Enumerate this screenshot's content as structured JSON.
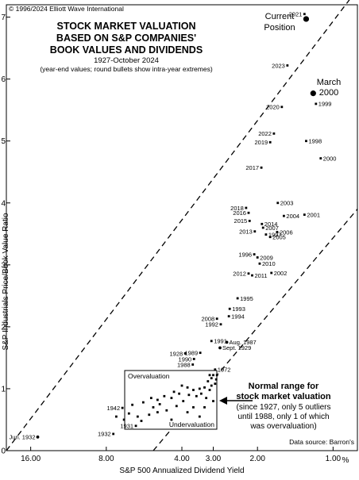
{
  "chart_data": {
    "type": "scatter",
    "title": "STOCK MARKET VALUATION BASED ON S&P COMPANIES' BOOK VALUES AND DIVIDENDS",
    "title_lines": [
      "STOCK MARKET VALUATION",
      "BASED ON S&P COMPANIES'",
      "BOOK VALUES AND DIVIDENDS"
    ],
    "subtitle": "1927-October 2024",
    "note": "(year-end values; round bullets show intra-year extremes)",
    "copyright": "© 1996/2024 Elliott Wave International",
    "source": "Data source: Barron's",
    "xlabel": "S&P 500 Annualized Dividend Yield",
    "ylabel": "S&P Industrials Price/Book Value Ratio",
    "x_scale": "log-reversed",
    "x_unit_label": "%",
    "xlim": [
      20.0,
      0.8
    ],
    "ylim": [
      0,
      7.2
    ],
    "x_ticks": [
      {
        "value": 16.0,
        "label": "16.00"
      },
      {
        "value": 8.0,
        "label": "8.00"
      },
      {
        "value": 4.0,
        "label": "4.00"
      },
      {
        "value": 3.0,
        "label": "3.00"
      },
      {
        "value": 2.0,
        "label": "2.00"
      },
      {
        "value": 1.0,
        "label": "1.00"
      }
    ],
    "y_ticks": [
      0,
      1,
      2,
      3,
      4,
      5,
      6,
      7
    ],
    "grid": false,
    "points": [
      {
        "label": "2021",
        "x": 1.3,
        "y": 7.05
      },
      {
        "label": "2023",
        "x": 1.52,
        "y": 6.22
      },
      {
        "label": "1999",
        "x": 1.17,
        "y": 5.6
      },
      {
        "label": "2020",
        "x": 1.6,
        "y": 5.55
      },
      {
        "label": "2022",
        "x": 1.72,
        "y": 5.12
      },
      {
        "label": "2019",
        "x": 1.78,
        "y": 4.98
      },
      {
        "label": "1998",
        "x": 1.28,
        "y": 5.0
      },
      {
        "label": "2000",
        "x": 1.12,
        "y": 4.72
      },
      {
        "label": "2017",
        "x": 1.93,
        "y": 4.57
      },
      {
        "label": "2018",
        "x": 2.22,
        "y": 3.92
      },
      {
        "label": "2016",
        "x": 2.17,
        "y": 3.84
      },
      {
        "label": "2003",
        "x": 1.66,
        "y": 4.0
      },
      {
        "label": "2004",
        "x": 1.57,
        "y": 3.79
      },
      {
        "label": "2001",
        "x": 1.3,
        "y": 3.81
      },
      {
        "label": "2015",
        "x": 2.15,
        "y": 3.71
      },
      {
        "label": "2014",
        "x": 1.92,
        "y": 3.66
      },
      {
        "label": "2007",
        "x": 1.9,
        "y": 3.6
      },
      {
        "label": "2013",
        "x": 2.05,
        "y": 3.54
      },
      {
        "label": "1997",
        "x": 1.85,
        "y": 3.49
      },
      {
        "label": "2006",
        "x": 1.67,
        "y": 3.53
      },
      {
        "label": "2005",
        "x": 1.78,
        "y": 3.45
      },
      {
        "label": "1996",
        "x": 2.06,
        "y": 3.17
      },
      {
        "label": "2009",
        "x": 2.0,
        "y": 3.12
      },
      {
        "label": "2010",
        "x": 1.96,
        "y": 3.02
      },
      {
        "label": "2012",
        "x": 2.17,
        "y": 2.86
      },
      {
        "label": "2011",
        "x": 2.1,
        "y": 2.83
      },
      {
        "label": "2002",
        "x": 1.76,
        "y": 2.87
      },
      {
        "label": "1995",
        "x": 2.4,
        "y": 2.46
      },
      {
        "label": "1993",
        "x": 2.58,
        "y": 2.29
      },
      {
        "label": "1994",
        "x": 2.6,
        "y": 2.17
      },
      {
        "label": "2008",
        "x": 2.9,
        "y": 2.13
      },
      {
        "label": "1992",
        "x": 2.8,
        "y": 2.04
      },
      {
        "label": "Aug. 1987",
        "x": 2.65,
        "y": 1.75
      },
      {
        "label": "1991",
        "x": 3.05,
        "y": 1.77
      },
      {
        "label": "Sept. 1929",
        "x": 2.82,
        "y": 1.66
      },
      {
        "label": "1989",
        "x": 3.38,
        "y": 1.58
      },
      {
        "label": "1928",
        "x": 3.88,
        "y": 1.57
      },
      {
        "label": "1990",
        "x": 3.58,
        "y": 1.48
      },
      {
        "label": "1988",
        "x": 3.62,
        "y": 1.39
      },
      {
        "label": "1972",
        "x": 2.95,
        "y": 1.31
      },
      {
        "label": "1942",
        "x": 6.9,
        "y": 0.69
      },
      {
        "label": "1931",
        "x": 6.1,
        "y": 0.4
      },
      {
        "label": "1932",
        "x": 7.5,
        "y": 0.27
      },
      {
        "label": "Jun. 1932",
        "x": 15.0,
        "y": 0.22
      },
      {
        "label": "March 2000",
        "x": 1.2,
        "y": 5.77
      },
      {
        "label": "Current Position",
        "x": 1.28,
        "y": 6.97
      }
    ],
    "cluster_points": [
      [
        3.1,
        1.22
      ],
      [
        3.0,
        1.22
      ],
      [
        2.9,
        1.22
      ],
      [
        3.05,
        1.17
      ],
      [
        2.92,
        1.15
      ],
      [
        3.15,
        1.12
      ],
      [
        2.95,
        1.08
      ],
      [
        3.05,
        1.05
      ],
      [
        3.25,
        1.02
      ],
      [
        3.4,
        1.0
      ],
      [
        3.1,
        0.98
      ],
      [
        3.6,
        0.98
      ],
      [
        3.8,
        1.02
      ],
      [
        4.0,
        1.05
      ],
      [
        3.35,
        0.92
      ],
      [
        3.5,
        0.88
      ],
      [
        3.75,
        0.9
      ],
      [
        4.1,
        0.92
      ],
      [
        4.3,
        0.95
      ],
      [
        3.2,
        0.85
      ],
      [
        3.0,
        0.8
      ],
      [
        3.95,
        0.8
      ],
      [
        4.4,
        0.85
      ],
      [
        4.7,
        0.88
      ],
      [
        5.0,
        0.82
      ],
      [
        5.3,
        0.85
      ],
      [
        5.7,
        0.78
      ],
      [
        6.3,
        0.74
      ],
      [
        4.2,
        0.72
      ],
      [
        3.6,
        0.7
      ],
      [
        4.6,
        0.65
      ],
      [
        5.0,
        0.62
      ],
      [
        5.4,
        0.58
      ],
      [
        6.0,
        0.55
      ],
      [
        6.5,
        0.6
      ],
      [
        5.8,
        0.48
      ],
      [
        4.4,
        0.5
      ],
      [
        3.4,
        0.55
      ],
      [
        7.3,
        0.55
      ],
      [
        3.8,
        0.62
      ],
      [
        5.2,
        0.7
      ],
      [
        6.8,
        0.5
      ],
      [
        4.9,
        0.75
      ],
      [
        3.25,
        0.7
      ]
    ],
    "bands": [
      {
        "name": "upper",
        "x": [
          20.0,
          0.8
        ],
        "y": [
          0.0,
          7.45
        ]
      },
      {
        "name": "lower",
        "x": [
          5.2,
          0.8
        ],
        "y": [
          0.0,
          3.9
        ]
      }
    ],
    "annotations": {
      "overvaluation": "Overvaluation",
      "undervaluation": "Undervaluation",
      "normal_range_title": "Normal range for stock market valuation",
      "normal_range_title_lines": [
        "Normal range for",
        "stock market valuation"
      ],
      "normal_range_text_lines": [
        "(since 1927, only 5 outliers",
        "until 1988, only 1 of which",
        "was overvaluation)"
      ],
      "current_position_lines": [
        "Current",
        "Position"
      ],
      "march2000_lines": [
        "March",
        "2000"
      ]
    }
  }
}
